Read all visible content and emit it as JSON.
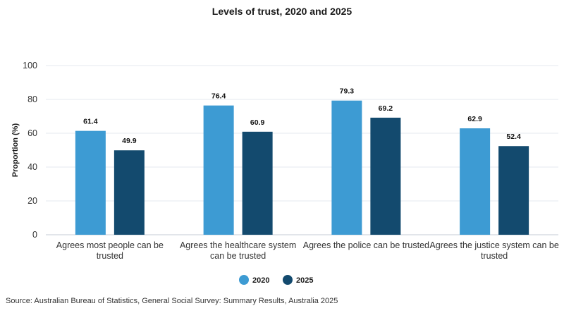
{
  "source": "Source: Australian Bureau of Statistics, General Social Survey: Summary Results, Australia 2025",
  "chart_data": {
    "type": "bar",
    "title": "Levels of trust, 2020 and 2025",
    "ylabel": "Proportion (%)",
    "xlabel": "",
    "ylim": [
      0,
      100
    ],
    "yticks": [
      0,
      20,
      40,
      60,
      80,
      100
    ],
    "grid": true,
    "legend_position": "bottom",
    "categories": [
      [
        "Agrees most people can be",
        "trusted"
      ],
      [
        "Agrees the healthcare system",
        "can be trusted"
      ],
      [
        "Agrees the police can be trusted"
      ],
      [
        "Agrees the justice system can be",
        "trusted"
      ]
    ],
    "series": [
      {
        "name": "2020",
        "color": "#3d9bd3",
        "values": [
          61.4,
          76.4,
          79.3,
          62.9
        ]
      },
      {
        "name": "2025",
        "color": "#134a6e",
        "values": [
          49.9,
          60.9,
          69.2,
          52.4
        ]
      }
    ]
  }
}
